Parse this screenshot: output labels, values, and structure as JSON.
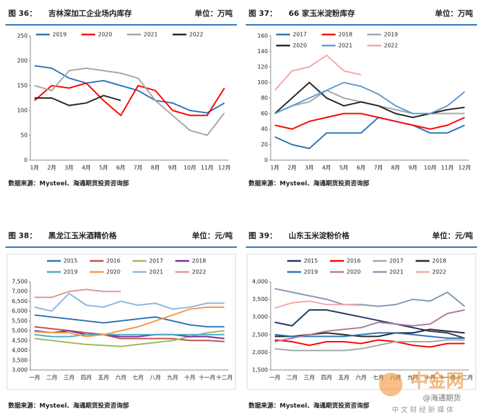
{
  "chart_data": [
    {
      "type": "line",
      "figure": "图 36：",
      "title": "吉林深加工企业场内库存",
      "unit": "单位：万吨",
      "source": "数据来源：Mysteel、海通期货投资咨询部",
      "legend": "upper",
      "categories": [
        "1月",
        "2月",
        "3月",
        "4月",
        "5月",
        "6月",
        "7月",
        "8月",
        "9月",
        "10月",
        "11月",
        "12月"
      ],
      "ylim": [
        0,
        250
      ],
      "yticks": [
        0,
        50,
        100,
        150,
        200,
        250
      ],
      "series": [
        {
          "name": "2019",
          "color": "#2e75b6",
          "values": [
            190,
            185,
            165,
            155,
            160,
            150,
            140,
            120,
            115,
            100,
            95,
            115
          ]
        },
        {
          "name": "2020",
          "color": "#ff0000",
          "values": [
            120,
            150,
            145,
            155,
            120,
            90,
            150,
            140,
            100,
            90,
            90,
            145
          ]
        },
        {
          "name": "2021",
          "color": "#a6a6a6",
          "values": [
            150,
            140,
            180,
            185,
            180,
            175,
            165,
            120,
            90,
            60,
            50,
            95
          ]
        },
        {
          "name": "2022",
          "color": "#262626",
          "values": [
            125,
            125,
            110,
            115,
            130,
            120,
            null,
            null,
            null,
            null,
            null,
            null
          ]
        }
      ]
    },
    {
      "type": "line",
      "figure": "图 37：",
      "title": "66 家玉米淀粉库存",
      "unit": "单位：万吨",
      "source": "数据来源：Mysteel、海通期货投资咨询部",
      "legend": "upper",
      "categories": [
        "1月",
        "2月",
        "3月",
        "4月",
        "5月",
        "6月",
        "7月",
        "8月",
        "9月",
        "10月",
        "11月",
        "12月"
      ],
      "ylim": [
        0,
        160
      ],
      "yticks": [
        0,
        20,
        40,
        60,
        80,
        100,
        120,
        140,
        160
      ],
      "series": [
        {
          "name": "2017",
          "color": "#2e75b6",
          "values": [
            30,
            20,
            15,
            35,
            35,
            35,
            55,
            50,
            45,
            35,
            35,
            45
          ]
        },
        {
          "name": "2018",
          "color": "#ff0000",
          "values": [
            45,
            40,
            50,
            55,
            60,
            60,
            55,
            50,
            45,
            40,
            45,
            55
          ]
        },
        {
          "name": "2019",
          "color": "#a6a6a6",
          "values": [
            60,
            70,
            75,
            90,
            80,
            75,
            70,
            65,
            60,
            60,
            60,
            60
          ]
        },
        {
          "name": "2020",
          "color": "#262626",
          "values": [
            60,
            80,
            100,
            80,
            70,
            75,
            70,
            60,
            55,
            60,
            65,
            68
          ]
        },
        {
          "name": "2021",
          "color": "#5b9bd5",
          "values": [
            60,
            70,
            80,
            90,
            100,
            95,
            85,
            70,
            60,
            60,
            70,
            88
          ]
        },
        {
          "name": "2022",
          "color": "#f4a6a6",
          "values": [
            90,
            115,
            120,
            135,
            115,
            110,
            null,
            null,
            null,
            null,
            null,
            null
          ]
        }
      ]
    },
    {
      "type": "line",
      "figure": "图 38：",
      "title": "黑龙江玉米酒精价格",
      "unit": "单位：元/吨",
      "source": "数据来源：Mysteel、海通期货投资咨询部",
      "legend": "above",
      "categories": [
        "一月",
        "二月",
        "三月",
        "四月",
        "五月",
        "六月",
        "七月",
        "八月",
        "九月",
        "十月",
        "十一月",
        "十二月"
      ],
      "ylim": [
        3000,
        7500
      ],
      "yticks": [
        {
          "value": 3000,
          "label": "3,000"
        },
        {
          "value": 3500,
          "label": "3,500"
        },
        {
          "value": 4000,
          "label": "4,000"
        },
        {
          "value": 4500,
          "label": "4,500"
        },
        {
          "value": 5000,
          "label": "5,000"
        },
        {
          "value": 5500,
          "label": "5,500"
        },
        {
          "value": 6000,
          "label": "6,000"
        },
        {
          "value": 6500,
          "label": "6,500"
        },
        {
          "value": 7000,
          "label": "7,000"
        },
        {
          "value": 7500,
          "label": "7,500"
        }
      ],
      "series": [
        {
          "name": "2015",
          "color": "#2e75b6",
          "values": [
            5800,
            5700,
            5600,
            5500,
            5400,
            5500,
            5600,
            5700,
            5500,
            5300,
            5200,
            5200
          ]
        },
        {
          "name": "2016",
          "color": "#c0504d",
          "values": [
            5200,
            5100,
            5000,
            4900,
            4800,
            4600,
            4600,
            4600,
            4600,
            4500,
            4500,
            4450
          ]
        },
        {
          "name": "2017",
          "color": "#9bbb59",
          "values": [
            4600,
            4500,
            4400,
            4300,
            4250,
            4200,
            4300,
            4400,
            4500,
            4700,
            4900,
            5000
          ]
        },
        {
          "name": "2018",
          "color": "#7030a0",
          "values": [
            5000,
            4900,
            5000,
            4800,
            4800,
            4700,
            4700,
            4800,
            4800,
            4700,
            4700,
            4600
          ]
        },
        {
          "name": "2019",
          "color": "#4bacc6",
          "values": [
            4800,
            4700,
            4700,
            4800,
            4800,
            4800,
            4800,
            4800,
            4800,
            4800,
            4800,
            4800
          ]
        },
        {
          "name": "2020",
          "color": "#f79646",
          "values": [
            4950,
            4900,
            4900,
            4700,
            4800,
            5000,
            5200,
            5500,
            5800,
            6100,
            6200,
            6200
          ]
        },
        {
          "name": "2021",
          "color": "#8eb4e3",
          "values": [
            6200,
            6000,
            6900,
            6300,
            6200,
            6500,
            6300,
            6400,
            6100,
            6200,
            6400,
            6400
          ]
        },
        {
          "name": "2022",
          "color": "#d99694",
          "values": [
            6700,
            6700,
            7000,
            7100,
            7000,
            7000,
            null,
            null,
            null,
            null,
            null,
            null
          ]
        }
      ]
    },
    {
      "type": "line",
      "figure": "图 39：",
      "title": "山东玉米淀粉价格",
      "unit": "单位：元/吨",
      "source": "数据来源：Mysteel、海通期货投资咨询部",
      "legend": "above",
      "categories": [
        "一月",
        "二月",
        "三月",
        "四月",
        "五月",
        "六月",
        "七月",
        "八月",
        "九月",
        "十月",
        "十一月",
        "十二月"
      ],
      "ylim": [
        1500,
        4000
      ],
      "yticks": [
        {
          "value": 1500,
          "label": "1,500"
        },
        {
          "value": 2000,
          "label": "2,000"
        },
        {
          "value": 2500,
          "label": "2,500"
        },
        {
          "value": 3000,
          "label": "3,000"
        },
        {
          "value": 3500,
          "label": "3,500"
        },
        {
          "value": 4000,
          "label": "4,000"
        }
      ],
      "series": [
        {
          "name": "2015",
          "color": "#1f3864",
          "values": [
            2850,
            2750,
            3200,
            3200,
            3100,
            3000,
            2900,
            2800,
            2700,
            2600,
            2550,
            2400
          ]
        },
        {
          "name": "2016",
          "color": "#ff0000",
          "values": [
            2350,
            2300,
            2200,
            2300,
            2300,
            2250,
            2350,
            2300,
            2200,
            2150,
            2250,
            2250
          ]
        },
        {
          "name": "2017",
          "color": "#a6a6a6",
          "values": [
            2100,
            2050,
            2050,
            2050,
            2050,
            2100,
            2200,
            2300,
            2300,
            2300,
            2350,
            2350
          ]
        },
        {
          "name": "2018",
          "color": "#262626",
          "values": [
            2450,
            2450,
            2500,
            2550,
            2500,
            2450,
            2450,
            2550,
            2550,
            2650,
            2600,
            2550
          ]
        },
        {
          "name": "2019",
          "color": "#2e75b6",
          "values": [
            2500,
            2450,
            2450,
            2450,
            2450,
            2500,
            2550,
            2550,
            2500,
            2450,
            2400,
            2400
          ]
        },
        {
          "name": "2020",
          "color": "#b07aa1",
          "values": [
            2300,
            2400,
            2500,
            2600,
            2650,
            2700,
            2850,
            2800,
            2750,
            2800,
            3100,
            3200
          ]
        },
        {
          "name": "2021",
          "color": "#8497b0",
          "values": [
            3800,
            3700,
            3600,
            3500,
            3350,
            3350,
            3300,
            3350,
            3500,
            3450,
            3700,
            3300
          ]
        },
        {
          "name": "2022",
          "color": "#f4a6a6",
          "values": [
            3250,
            3400,
            3450,
            3350,
            3350,
            3330,
            null,
            null,
            null,
            null,
            null,
            null
          ]
        }
      ]
    }
  ],
  "watermark": {
    "logo": "中金网",
    "tagline": "中 文 财 经 新 媒 体",
    "account": "@海通期货"
  }
}
